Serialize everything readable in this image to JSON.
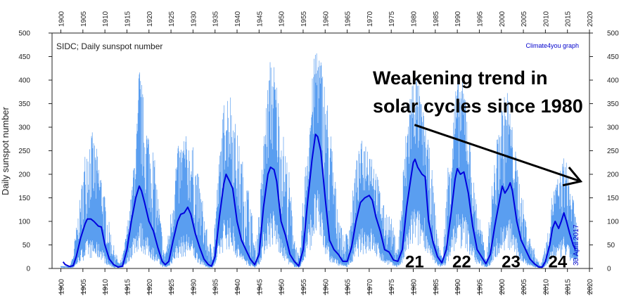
{
  "chart_data": {
    "type": "line",
    "title": "SIDC; Daily sunspot number",
    "credit": "Climate4you graph",
    "date_note": "30 April 2017",
    "ylabel": "Daily sunspot number",
    "xlabel": "",
    "xlim": [
      1898,
      2020
    ],
    "ylim": [
      0,
      500
    ],
    "x_ticks": [
      1900,
      1905,
      1910,
      1915,
      1920,
      1925,
      1930,
      1935,
      1940,
      1945,
      1950,
      1955,
      1960,
      1965,
      1970,
      1975,
      1980,
      1985,
      1990,
      1995,
      2000,
      2005,
      2010,
      2015,
      2020
    ],
    "y_ticks": [
      0,
      50,
      100,
      150,
      200,
      250,
      300,
      350,
      400,
      450,
      500
    ],
    "grid": false,
    "series": [
      {
        "kind": "daily",
        "color": "#5a9ef0",
        "envelope": [
          [
            1900.0,
            5
          ],
          [
            1902.0,
            4
          ],
          [
            1902.7,
            30
          ],
          [
            1904.5,
            160
          ],
          [
            1905.8,
            280
          ],
          [
            1906.8,
            300
          ],
          [
            1907.8,
            270
          ],
          [
            1909.0,
            215
          ],
          [
            1910.5,
            120
          ],
          [
            1912.0,
            50
          ],
          [
            1913.3,
            10
          ],
          [
            1914.3,
            40
          ],
          [
            1916.0,
            160
          ],
          [
            1917.4,
            330
          ],
          [
            1917.8,
            450
          ],
          [
            1919.0,
            340
          ],
          [
            1921.0,
            260
          ],
          [
            1922.5,
            120
          ],
          [
            1923.5,
            30
          ],
          [
            1924.5,
            80
          ],
          [
            1926.2,
            250
          ],
          [
            1928.0,
            290
          ],
          [
            1930.0,
            260
          ],
          [
            1932.0,
            160
          ],
          [
            1933.5,
            60
          ],
          [
            1934.5,
            50
          ],
          [
            1935.8,
            220
          ],
          [
            1937.3,
            385
          ],
          [
            1938.5,
            380
          ],
          [
            1940.0,
            290
          ],
          [
            1941.5,
            220
          ],
          [
            1943.0,
            160
          ],
          [
            1944.1,
            40
          ],
          [
            1945.2,
            150
          ],
          [
            1946.5,
            350
          ],
          [
            1947.6,
            455
          ],
          [
            1948.5,
            440
          ],
          [
            1950.0,
            320
          ],
          [
            1951.8,
            210
          ],
          [
            1953.2,
            60
          ],
          [
            1954.2,
            20
          ],
          [
            1955.3,
            200
          ],
          [
            1957.2,
            420
          ],
          [
            1958.0,
            500
          ],
          [
            1959.5,
            430
          ],
          [
            1961.0,
            330
          ],
          [
            1962.5,
            170
          ],
          [
            1964.2,
            60
          ],
          [
            1965.5,
            100
          ],
          [
            1967.0,
            230
          ],
          [
            1968.5,
            280
          ],
          [
            1970.0,
            270
          ],
          [
            1971.5,
            220
          ],
          [
            1973.0,
            140
          ],
          [
            1975.0,
            110
          ],
          [
            1976.5,
            40
          ],
          [
            1978.0,
            260
          ],
          [
            1979.3,
            395
          ],
          [
            1980.5,
            430
          ],
          [
            1982.0,
            350
          ],
          [
            1984.0,
            240
          ],
          [
            1985.5,
            70
          ],
          [
            1986.7,
            20
          ],
          [
            1988.0,
            250
          ],
          [
            1989.5,
            380
          ],
          [
            1990.5,
            420
          ],
          [
            1991.8,
            400
          ],
          [
            1993.5,
            200
          ],
          [
            1995.5,
            90
          ],
          [
            1996.5,
            20
          ],
          [
            1998.0,
            200
          ],
          [
            2000.0,
            350
          ],
          [
            2001.5,
            390
          ],
          [
            2002.5,
            300
          ],
          [
            2004.0,
            200
          ],
          [
            2006.0,
            80
          ],
          [
            2008.8,
            8
          ],
          [
            2010.5,
            70
          ],
          [
            2011.5,
            160
          ],
          [
            2013.0,
            200
          ],
          [
            2014.3,
            245
          ],
          [
            2015.5,
            200
          ],
          [
            2016.5,
            140
          ],
          [
            2017.3,
            80
          ]
        ]
      },
      {
        "kind": "running mean",
        "color": "#0000dd",
        "points": [
          [
            1900.5,
            14
          ],
          [
            1901.0,
            8
          ],
          [
            1902.0,
            4
          ],
          [
            1902.8,
            6
          ],
          [
            1903.5,
            25
          ],
          [
            1904.5,
            65
          ],
          [
            1905.5,
            95
          ],
          [
            1906.0,
            105
          ],
          [
            1906.8,
            105
          ],
          [
            1907.5,
            100
          ],
          [
            1908.5,
            90
          ],
          [
            1909.2,
            88
          ],
          [
            1910.0,
            50
          ],
          [
            1911.0,
            20
          ],
          [
            1912.0,
            8
          ],
          [
            1913.0,
            3
          ],
          [
            1914.0,
            5
          ],
          [
            1915.0,
            40
          ],
          [
            1916.0,
            100
          ],
          [
            1917.0,
            150
          ],
          [
            1917.8,
            175
          ],
          [
            1918.3,
            165
          ],
          [
            1919.0,
            140
          ],
          [
            1920.0,
            100
          ],
          [
            1921.0,
            80
          ],
          [
            1922.0,
            45
          ],
          [
            1923.0,
            15
          ],
          [
            1923.7,
            8
          ],
          [
            1924.5,
            15
          ],
          [
            1925.5,
            60
          ],
          [
            1926.5,
            100
          ],
          [
            1927.2,
            115
          ],
          [
            1928.0,
            118
          ],
          [
            1928.8,
            130
          ],
          [
            1929.5,
            115
          ],
          [
            1930.5,
            75
          ],
          [
            1931.5,
            45
          ],
          [
            1932.5,
            20
          ],
          [
            1933.5,
            8
          ],
          [
            1934.2,
            5
          ],
          [
            1935.0,
            25
          ],
          [
            1936.0,
            110
          ],
          [
            1937.0,
            180
          ],
          [
            1937.5,
            200
          ],
          [
            1938.3,
            185
          ],
          [
            1939.0,
            170
          ],
          [
            1940.0,
            100
          ],
          [
            1941.0,
            60
          ],
          [
            1942.0,
            40
          ],
          [
            1943.0,
            20
          ],
          [
            1944.0,
            8
          ],
          [
            1945.0,
            30
          ],
          [
            1946.0,
            130
          ],
          [
            1947.0,
            200
          ],
          [
            1947.6,
            215
          ],
          [
            1948.4,
            210
          ],
          [
            1949.0,
            185
          ],
          [
            1950.0,
            100
          ],
          [
            1951.0,
            70
          ],
          [
            1952.0,
            30
          ],
          [
            1953.0,
            15
          ],
          [
            1954.0,
            5
          ],
          [
            1955.0,
            40
          ],
          [
            1956.0,
            140
          ],
          [
            1957.0,
            230
          ],
          [
            1957.8,
            285
          ],
          [
            1958.3,
            280
          ],
          [
            1959.0,
            250
          ],
          [
            1960.0,
            150
          ],
          [
            1961.0,
            60
          ],
          [
            1962.0,
            40
          ],
          [
            1963.0,
            30
          ],
          [
            1964.0,
            15
          ],
          [
            1965.0,
            15
          ],
          [
            1966.0,
            45
          ],
          [
            1967.0,
            100
          ],
          [
            1968.0,
            140
          ],
          [
            1969.0,
            150
          ],
          [
            1970.0,
            155
          ],
          [
            1970.7,
            145
          ],
          [
            1971.5,
            110
          ],
          [
            1972.5,
            80
          ],
          [
            1973.5,
            40
          ],
          [
            1974.5,
            35
          ],
          [
            1975.5,
            18
          ],
          [
            1976.5,
            15
          ],
          [
            1977.5,
            40
          ],
          [
            1978.5,
            130
          ],
          [
            1979.5,
            195
          ],
          [
            1980.0,
            225
          ],
          [
            1980.4,
            232
          ],
          [
            1981.0,
            215
          ],
          [
            1982.0,
            200
          ],
          [
            1982.7,
            195
          ],
          [
            1983.5,
            100
          ],
          [
            1984.5,
            55
          ],
          [
            1985.5,
            25
          ],
          [
            1986.5,
            12
          ],
          [
            1987.5,
            40
          ],
          [
            1988.5,
            110
          ],
          [
            1989.5,
            190
          ],
          [
            1990.0,
            212
          ],
          [
            1990.7,
            200
          ],
          [
            1991.5,
            205
          ],
          [
            1992.5,
            160
          ],
          [
            1993.5,
            90
          ],
          [
            1994.5,
            40
          ],
          [
            1995.5,
            25
          ],
          [
            1996.5,
            10
          ],
          [
            1997.5,
            30
          ],
          [
            1998.5,
            90
          ],
          [
            1999.5,
            140
          ],
          [
            2000.2,
            175
          ],
          [
            2000.8,
            160
          ],
          [
            2001.5,
            170
          ],
          [
            2002.0,
            182
          ],
          [
            2002.5,
            165
          ],
          [
            2003.5,
            100
          ],
          [
            2004.5,
            60
          ],
          [
            2005.5,
            40
          ],
          [
            2006.5,
            20
          ],
          [
            2007.5,
            10
          ],
          [
            2008.5,
            3
          ],
          [
            2009.3,
            3
          ],
          [
            2010.0,
            15
          ],
          [
            2011.0,
            50
          ],
          [
            2011.6,
            85
          ],
          [
            2012.2,
            100
          ],
          [
            2013.0,
            85
          ],
          [
            2013.6,
            100
          ],
          [
            2014.2,
            118
          ],
          [
            2014.8,
            100
          ],
          [
            2015.5,
            75
          ],
          [
            2016.3,
            50
          ],
          [
            2016.8,
            40
          ]
        ]
      }
    ],
    "annotations": {
      "headline_line1": "Weakening trend in",
      "headline_line2": "solar cycles since 1980",
      "trend_arrow": {
        "from": [
          1980.3,
          305
        ],
        "to": [
          2018.0,
          185
        ]
      },
      "cycle_labels": [
        {
          "text": "21",
          "x": 1980.3,
          "y": 2
        },
        {
          "text": "22",
          "x": 1991.0,
          "y": 2
        },
        {
          "text": "23",
          "x": 2002.2,
          "y": 2
        },
        {
          "text": "24",
          "x": 2012.8,
          "y": 2
        }
      ]
    }
  }
}
